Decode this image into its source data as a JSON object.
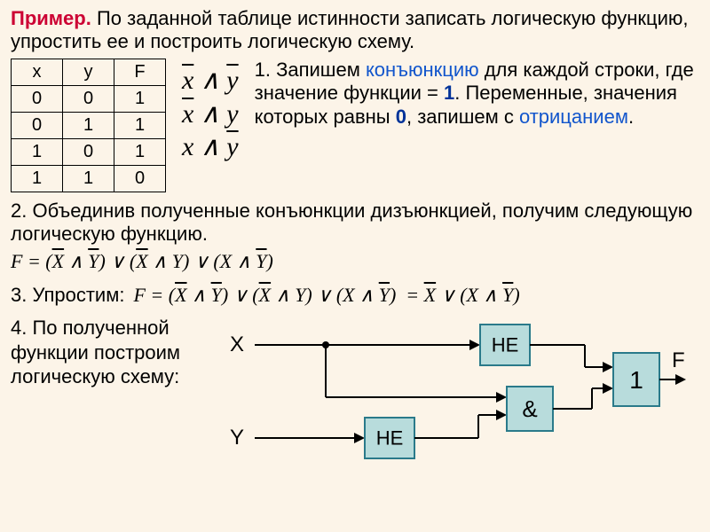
{
  "title": {
    "label": "Пример.",
    "text": " По заданной таблице истинности записать логическую функцию, упростить ее и построить логическую схему."
  },
  "table": {
    "headers": [
      "x",
      "y",
      "F"
    ],
    "rows": [
      [
        "0",
        "0",
        "1"
      ],
      [
        "0",
        "1",
        "1"
      ],
      [
        "1",
        "0",
        "1"
      ],
      [
        "1",
        "1",
        "0"
      ]
    ]
  },
  "step1": {
    "prefix": "1. Запишем ",
    "conj": "конъюнкцию",
    "mid": " для каждой строки, где значение функции = ",
    "one": "1",
    "mid2": ". Переменные, значения которых равны ",
    "zero": "0",
    "mid3": ", запишем с ",
    "neg": "отрицанием",
    "end": "."
  },
  "step2": "2. Объединив полученные конъюнкции дизъюнкцией, получим следующую логическую функцию.",
  "step3": "3. Упростим:",
  "step4": "4. По полученной функции построим логическую схему:",
  "circuit": {
    "X": "X",
    "Y": "Y",
    "F": "F",
    "NE": "НЕ",
    "AND": "&",
    "OR": "1",
    "box_fill": "#b8dcdc",
    "box_stroke": "#2a7a8a",
    "line": "#000"
  }
}
